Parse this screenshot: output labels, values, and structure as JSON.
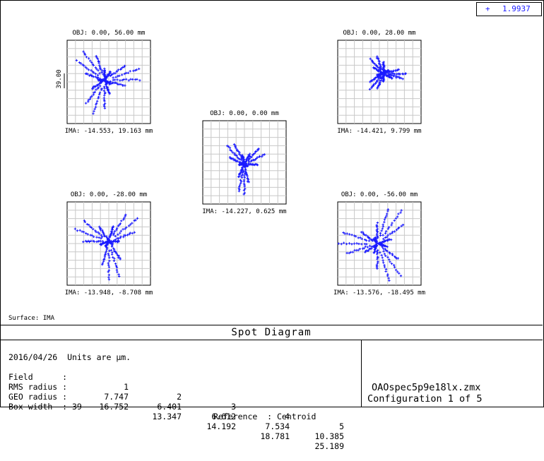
{
  "chart_data": {
    "type": "scatter",
    "title": "Spot Diagram",
    "legend": [
      {
        "symbol": "+",
        "value": "1.9937",
        "color": "#1a1aff"
      }
    ],
    "surface_label": "Surface: IMA",
    "scale_bar_label": "39.00",
    "fields": [
      {
        "obj": "OBJ: 0.00, 56.00 mm",
        "ima": "IMA: -14.553, 19.163 mm"
      },
      {
        "obj": "OBJ: 0.00, 28.00 mm",
        "ima": "IMA: -14.421, 9.799 mm"
      },
      {
        "obj": "OBJ: 0.00, 0.00 mm",
        "ima": "IMA: -14.227, 0.625 mm"
      },
      {
        "obj": "OBJ: 0.00, -28.00 mm",
        "ima": "IMA: -13.948, -8.708 mm"
      },
      {
        "obj": "OBJ: 0.00, -56.00 mm",
        "ima": "IMA: -13.576, -18.495 mm"
      }
    ],
    "info": {
      "date_units": "2016/04/26  Units are µm.",
      "field_label": "Field      :",
      "field_numbers": [
        "1",
        "2",
        "3",
        "4",
        "5"
      ],
      "rms_label": "RMS radius :",
      "rms_radius": [
        "7.747",
        "6.401",
        "6.612",
        "7.534",
        "10.385"
      ],
      "geo_label": "GEO radius :",
      "geo_radius": [
        "16.752",
        "13.347",
        "14.192",
        "18.781",
        "25.189"
      ],
      "box_width": "Box width  : 39",
      "reference": "Reference  : Centroid"
    },
    "file_name": "OAOspec5p9e18lx.zmx",
    "configuration": "Configuration 1 of 5",
    "point_color": "#1a1aff",
    "grid": true
  }
}
